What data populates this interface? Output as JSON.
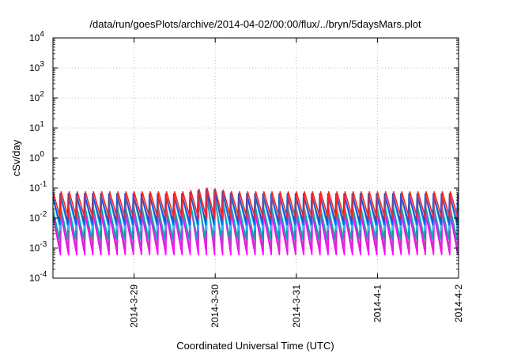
{
  "chart_data": {
    "type": "line",
    "title": "/data/run/goesPlots/archive/2014-04-02/00:00/flux/../bryn/5daysMars.plot",
    "xlabel": "Coordinated Universal Time (UTC)",
    "ylabel": "cSv/day",
    "yscale": "log",
    "ylim": [
      0.0001,
      10000
    ],
    "xlim": [
      "2014-03-28 00:00",
      "2014-04-02 00:00"
    ],
    "x_ticks": [
      {
        "t": "2014-03-29 00:00",
        "label": "2014-3-29"
      },
      {
        "t": "2014-03-30 00:00",
        "label": "2014-3-30"
      },
      {
        "t": "2014-03-31 00:00",
        "label": "2014-3-31"
      },
      {
        "t": "2014-04-01 00:00",
        "label": "2014-4-1"
      },
      {
        "t": "2014-04-02 00:00",
        "label": "2014-4-2"
      }
    ],
    "y_ticks": [
      {
        "value": 0.0001,
        "base": "10",
        "exp": "-4"
      },
      {
        "value": 0.001,
        "base": "10",
        "exp": "-3"
      },
      {
        "value": 0.01,
        "base": "10",
        "exp": "-2"
      },
      {
        "value": 0.1,
        "base": "10",
        "exp": "-1"
      },
      {
        "value": 1,
        "base": "10",
        "exp": "0"
      },
      {
        "value": 10,
        "base": "10",
        "exp": "1"
      },
      {
        "value": 100,
        "base": "10",
        "exp": "2"
      },
      {
        "value": 1000,
        "base": "10",
        "exp": "3"
      },
      {
        "value": 10000,
        "base": "10",
        "exp": "4"
      }
    ],
    "grid": true,
    "legend": "none",
    "pattern": {
      "kind": "sawtooth",
      "period_hours": 2.4,
      "note_spike": {
        "t": "2014-03-29 22:00",
        "peak": 0.15
      }
    },
    "series": [
      {
        "color": "#ff00ff",
        "peak": 0.012,
        "trough": 0.0006
      },
      {
        "color": "#cc33cc",
        "peak": 0.02,
        "trough": 0.001
      },
      {
        "color": "#00aaaa",
        "peak": 0.03,
        "trough": 0.002
      },
      {
        "color": "#33bbee",
        "peak": 0.045,
        "trough": 0.004
      },
      {
        "color": "#0066ff",
        "peak": 0.055,
        "trough": 0.006
      },
      {
        "color": "#2255cc",
        "peak": 0.065,
        "trough": 0.008
      },
      {
        "color": "#ff2222",
        "peak": 0.075,
        "trough": 0.01
      }
    ]
  }
}
